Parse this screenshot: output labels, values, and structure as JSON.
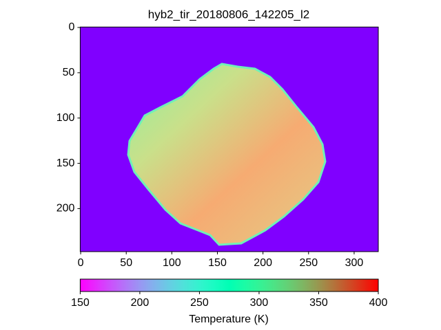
{
  "chart_data": {
    "type": "image",
    "title": "hyb2_tir_20180806_142205_l2",
    "xlim": [
      -0.5,
      326.5
    ],
    "xticks": [
      0,
      50,
      100,
      150,
      200,
      250,
      300
    ],
    "ylim": [
      247.5,
      -0.5
    ],
    "yticks": [
      0,
      50,
      100,
      150,
      200
    ],
    "colorbar": {
      "label": "Temperature (K)",
      "colormap": "rainbow",
      "lim": [
        150,
        400
      ],
      "ticks": [
        150,
        200,
        250,
        300,
        350,
        400
      ]
    }
  }
}
